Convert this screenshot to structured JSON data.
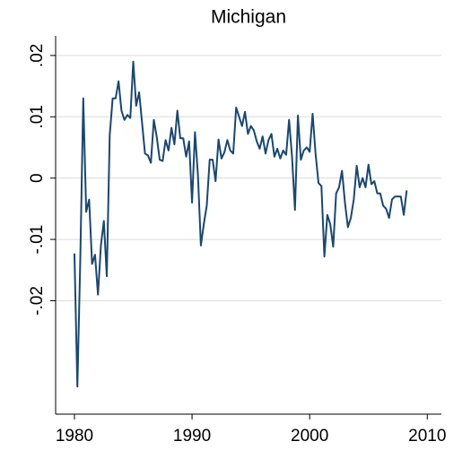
{
  "chart_data": {
    "type": "line",
    "title": "Michigan",
    "color": "#1a476f",
    "grid": true,
    "xlim": [
      1978.4,
      2011.2
    ],
    "xticks": [
      1980,
      1990,
      2000,
      2010
    ],
    "ylim": [
      -0.0385,
      0.0232
    ],
    "yticks": [
      {
        "value": -0.02,
        "label": "-.02"
      },
      {
        "value": -0.01,
        "label": "-.01"
      },
      0,
      {
        "value": 0.01,
        "label": ".01"
      },
      {
        "value": 0.02,
        "label": ".02"
      }
    ],
    "x": [
      1980,
      1980.25,
      1980.5,
      1980.75,
      1981,
      1981.25,
      1981.5,
      1981.75,
      1982,
      1982.25,
      1982.5,
      1982.75,
      1983,
      1983.25,
      1983.5,
      1983.75,
      1984,
      1984.25,
      1984.5,
      1984.75,
      1985,
      1985.25,
      1985.5,
      1985.75,
      1986,
      1986.25,
      1986.5,
      1986.75,
      1987,
      1987.25,
      1987.5,
      1987.75,
      1988,
      1988.25,
      1988.5,
      1988.75,
      1989,
      1989.25,
      1989.5,
      1989.75,
      1990,
      1990.25,
      1990.5,
      1990.75,
      1991,
      1991.25,
      1991.5,
      1991.75,
      1992,
      1992.25,
      1992.5,
      1992.75,
      1993,
      1993.25,
      1993.5,
      1993.75,
      1994,
      1994.25,
      1994.5,
      1994.75,
      1995,
      1995.25,
      1995.5,
      1995.75,
      1996,
      1996.25,
      1996.5,
      1996.75,
      1997,
      1997.25,
      1997.5,
      1997.75,
      1998,
      1998.25,
      1998.5,
      1998.75,
      1999,
      1999.25,
      1999.5,
      1999.75,
      2000,
      2000.25,
      2000.5,
      2000.75,
      2001,
      2001.25,
      2001.5,
      2001.75,
      2002,
      2002.25,
      2002.5,
      2002.75,
      2003,
      2003.25,
      2003.5,
      2003.75,
      2004,
      2004.25,
      2004.5,
      2004.75,
      2005,
      2005.25,
      2005.5,
      2005.75,
      2006,
      2006.25,
      2006.5,
      2006.75,
      2007,
      2007.25,
      2007.5,
      2007.75,
      2008,
      2008.25
    ],
    "values": [
      -0.0123,
      -0.034,
      -0.013,
      0.013,
      -0.0055,
      -0.0035,
      -0.014,
      -0.0125,
      -0.019,
      -0.011,
      -0.007,
      -0.016,
      0.007,
      0.013,
      0.013,
      0.0158,
      0.011,
      0.0095,
      0.0103,
      0.0098,
      0.019,
      0.0118,
      0.014,
      0.009,
      0.004,
      0.0037,
      0.0025,
      0.0095,
      0.0067,
      0.003,
      0.0028,
      0.0062,
      0.0045,
      0.0082,
      0.0055,
      0.011,
      0.0065,
      0.0065,
      0.0035,
      0.006,
      -0.004,
      0.0075,
      0.0005,
      -0.011,
      -0.0075,
      -0.0045,
      0.003,
      0.003,
      -0.0005,
      0.0063,
      0.0032,
      0.0042,
      0.0062,
      0.0045,
      0.004,
      0.0115,
      0.01,
      0.0085,
      0.0108,
      0.0072,
      0.0085,
      0.0078,
      0.006,
      0.0048,
      0.0068,
      0.004,
      0.0062,
      0.0072,
      0.0035,
      0.0048,
      0.0032,
      0.0045,
      0.0038,
      0.0095,
      0.0035,
      -0.0052,
      0.0102,
      0.003,
      0.0045,
      0.005,
      0.0043,
      0.0105,
      0.004,
      -0.0008,
      -0.0013,
      -0.0128,
      -0.006,
      -0.0075,
      -0.0112,
      -0.0025,
      -0.0015,
      0.0012,
      -0.004,
      -0.008,
      -0.0065,
      -0.0035,
      0.002,
      -0.0015,
      0,
      -0.0015,
      0.0022,
      -0.001,
      -0.0005,
      -0.0025,
      -0.0025,
      -0.0045,
      -0.005,
      -0.0065,
      -0.0035,
      -0.003,
      -0.003,
      -0.003,
      -0.006,
      -0.002
    ]
  }
}
